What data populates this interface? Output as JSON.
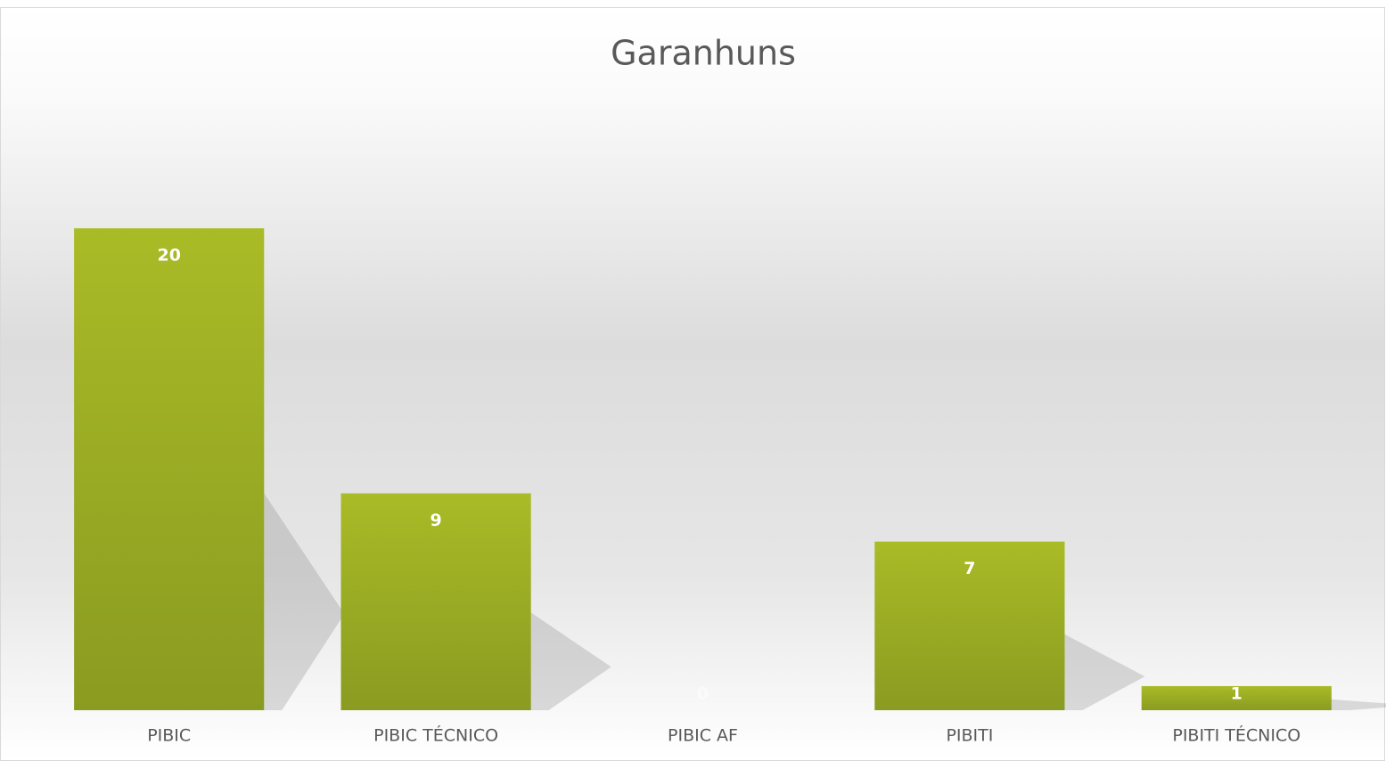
{
  "chart_data": {
    "type": "bar",
    "title": "Garanhuns",
    "categories": [
      "PIBIC",
      "PIBIC TÉCNICO",
      "PIBIC AF",
      "PIBITI",
      "PIBITI TÉCNICO"
    ],
    "values": [
      20,
      9,
      0,
      7,
      1
    ],
    "color": "#98ab22",
    "ylim": [
      0,
      25
    ],
    "grid": false
  }
}
